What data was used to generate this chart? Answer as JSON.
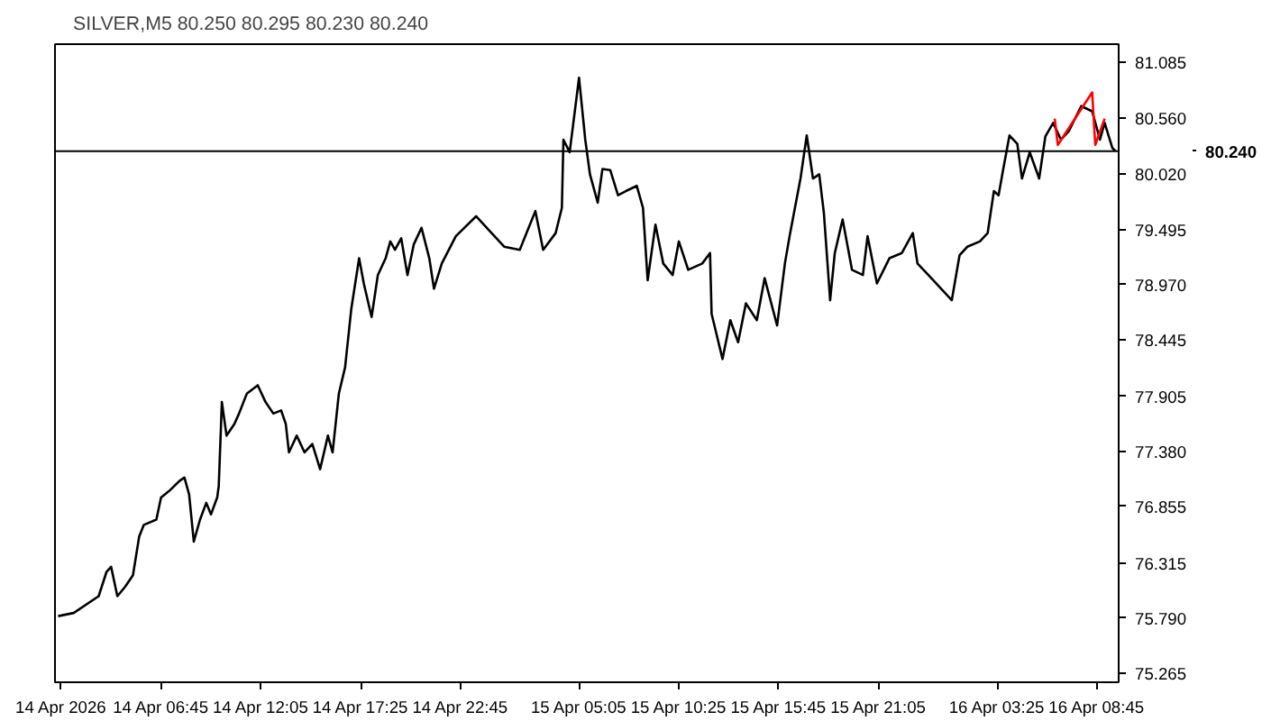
{
  "chart_data": {
    "type": "line",
    "title": "SILVER,M5  80.250 80.295 80.230 80.240",
    "xlim": [
      "2026-04-14T01:05",
      "2026-04-16T09:55"
    ],
    "ylim": [
      75.18,
      81.26
    ],
    "xticks": [
      {
        "value": "2026-04-14T01:25",
        "label": "14 Apr 2026"
      },
      {
        "value": "2026-04-14T06:45",
        "label": "14 Apr 06:45"
      },
      {
        "value": "2026-04-14T12:05",
        "label": "14 Apr 12:05"
      },
      {
        "value": "2026-04-14T17:25",
        "label": "14 Apr 17:25"
      },
      {
        "value": "2026-04-14T22:45",
        "label": "14 Apr 22:45"
      },
      {
        "value": "2026-04-15T05:05",
        "label": "15 Apr 05:05"
      },
      {
        "value": "2026-04-15T10:25",
        "label": "15 Apr 10:25"
      },
      {
        "value": "2026-04-15T15:45",
        "label": "15 Apr 15:45"
      },
      {
        "value": "2026-04-15T21:05",
        "label": "15 Apr 21:05"
      },
      {
        "value": "2026-04-16T03:25",
        "label": "16 Apr 03:25"
      },
      {
        "value": "2026-04-16T08:45",
        "label": "16 Apr 08:45"
      }
    ],
    "yticks": [
      {
        "value": 75.265,
        "label": "75.265"
      },
      {
        "value": 75.79,
        "label": "75.790"
      },
      {
        "value": 76.315,
        "label": "76.315"
      },
      {
        "value": 76.855,
        "label": "76.855"
      },
      {
        "value": 77.38,
        "label": "77.380"
      },
      {
        "value": 77.905,
        "label": "77.905"
      },
      {
        "value": 78.445,
        "label": "78.445"
      },
      {
        "value": 78.97,
        "label": "78.970"
      },
      {
        "value": 79.495,
        "label": "79.495"
      },
      {
        "value": 80.02,
        "label": "80.020"
      },
      {
        "value": 80.56,
        "label": "80.560"
      },
      {
        "value": 81.085,
        "label": "81.085"
      }
    ],
    "series": [
      {
        "color": "#000000",
        "x": [
          "2026-04-14T01:15",
          "2026-04-14T02:05",
          "2026-04-14T03:25",
          "2026-04-14T03:50",
          "2026-04-14T04:05",
          "2026-04-14T04:25",
          "2026-04-14T04:50",
          "2026-04-14T05:15",
          "2026-04-14T05:35",
          "2026-04-14T05:50",
          "2026-04-14T06:30",
          "2026-04-14T06:45",
          "2026-04-14T07:10",
          "2026-04-14T07:45",
          "2026-04-14T08:00",
          "2026-04-14T08:15",
          "2026-04-14T08:30",
          "2026-04-14T08:50",
          "2026-04-14T09:10",
          "2026-04-14T09:25",
          "2026-04-14T09:45",
          "2026-04-14T09:50",
          "2026-04-14T10:00",
          "2026-04-14T10:15",
          "2026-04-14T10:40",
          "2026-04-14T10:55",
          "2026-04-14T11:20",
          "2026-04-14T11:55",
          "2026-04-14T12:20",
          "2026-04-14T12:45",
          "2026-04-14T13:10",
          "2026-04-14T13:25",
          "2026-04-14T13:35",
          "2026-04-14T14:00",
          "2026-04-14T14:25",
          "2026-04-14T14:50",
          "2026-04-14T15:15",
          "2026-04-14T15:40",
          "2026-04-14T15:55",
          "2026-04-14T16:15",
          "2026-04-14T16:35",
          "2026-04-14T16:55",
          "2026-04-14T17:20",
          "2026-04-14T17:35",
          "2026-04-14T18:00",
          "2026-04-14T18:20",
          "2026-04-14T18:45",
          "2026-04-14T19:00",
          "2026-04-14T19:15",
          "2026-04-14T19:35",
          "2026-04-14T19:55",
          "2026-04-14T20:15",
          "2026-04-14T20:40",
          "2026-04-14T21:05",
          "2026-04-14T21:20",
          "2026-04-14T21:45",
          "2026-04-14T22:30",
          "2026-04-14T23:35",
          "2026-04-15T01:05",
          "2026-04-15T01:55",
          "2026-04-15T02:45",
          "2026-04-15T03:10",
          "2026-04-15T03:50",
          "2026-04-15T04:10",
          "2026-04-15T04:15",
          "2026-04-15T04:35",
          "2026-04-15T05:05",
          "2026-04-15T05:25",
          "2026-04-15T05:40",
          "2026-04-15T06:05",
          "2026-04-15T06:20",
          "2026-04-15T06:45",
          "2026-04-15T07:10",
          "2026-04-15T07:35",
          "2026-04-15T08:10",
          "2026-04-15T08:30",
          "2026-04-15T08:45",
          "2026-04-15T09:10",
          "2026-04-15T09:35",
          "2026-04-15T10:05",
          "2026-04-15T10:25",
          "2026-04-15T10:55",
          "2026-04-15T11:40",
          "2026-04-15T12:05",
          "2026-04-15T12:10",
          "2026-04-15T12:45",
          "2026-04-15T13:10",
          "2026-04-15T13:35",
          "2026-04-15T14:00",
          "2026-04-15T14:35",
          "2026-04-15T15:00",
          "2026-04-15T15:40",
          "2026-04-15T16:05",
          "2026-04-15T16:20",
          "2026-04-15T16:55",
          "2026-04-15T17:15",
          "2026-04-15T17:35",
          "2026-04-15T17:55",
          "2026-04-15T18:10",
          "2026-04-15T18:30",
          "2026-04-15T18:45",
          "2026-04-15T19:10",
          "2026-04-15T19:40",
          "2026-04-15T20:15",
          "2026-04-15T20:30",
          "2026-04-15T21:00",
          "2026-04-15T21:40",
          "2026-04-15T22:20",
          "2026-04-15T22:55",
          "2026-04-15T23:10",
          "2026-04-15T23:45",
          "2026-04-16T01:00",
          "2026-04-16T01:25",
          "2026-04-16T01:50",
          "2026-04-16T02:30",
          "2026-04-16T02:55",
          "2026-04-16T03:15",
          "2026-04-16T03:30",
          "2026-04-16T03:45",
          "2026-04-16T04:05",
          "2026-04-16T04:30",
          "2026-04-16T04:45",
          "2026-04-16T05:10",
          "2026-04-16T05:40",
          "2026-04-16T06:00",
          "2026-04-16T06:25",
          "2026-04-16T06:50",
          "2026-04-16T07:15",
          "2026-04-16T07:55",
          "2026-04-16T08:30",
          "2026-04-16T08:55",
          "2026-04-16T09:10",
          "2026-04-16T09:35",
          "2026-04-16T09:45"
        ],
        "values": [
          75.81,
          75.84,
          76.0,
          76.23,
          76.28,
          76.0,
          76.09,
          76.2,
          76.57,
          76.68,
          76.73,
          76.94,
          77.0,
          77.1,
          77.13,
          76.97,
          76.52,
          76.73,
          76.89,
          76.78,
          76.94,
          77.05,
          77.85,
          77.53,
          77.64,
          77.74,
          77.93,
          78.01,
          77.85,
          77.74,
          77.77,
          77.64,
          77.37,
          77.53,
          77.37,
          77.45,
          77.21,
          77.53,
          77.37,
          77.93,
          78.18,
          78.74,
          79.22,
          78.98,
          78.66,
          79.06,
          79.22,
          79.38,
          79.3,
          79.41,
          79.06,
          79.35,
          79.51,
          79.22,
          78.93,
          79.17,
          79.43,
          79.62,
          79.33,
          79.3,
          79.67,
          79.3,
          79.46,
          79.7,
          80.35,
          80.23,
          80.94,
          80.35,
          80.02,
          79.75,
          80.07,
          80.06,
          79.82,
          79.86,
          79.91,
          79.7,
          79.01,
          79.54,
          79.17,
          79.06,
          79.38,
          79.11,
          79.17,
          79.27,
          78.69,
          78.26,
          78.63,
          78.42,
          78.79,
          78.63,
          79.03,
          78.58,
          79.17,
          79.43,
          79.98,
          80.39,
          79.98,
          80.02,
          79.65,
          78.82,
          79.27,
          79.59,
          79.11,
          79.06,
          79.43,
          78.98,
          79.22,
          79.27,
          79.46,
          79.17,
          79.06,
          78.82,
          79.25,
          79.33,
          79.38,
          79.46,
          79.86,
          79.82,
          80.07,
          80.39,
          80.31,
          79.98,
          80.23,
          79.98,
          80.38,
          80.51,
          80.35,
          80.43,
          80.67,
          80.62,
          80.35,
          80.51,
          80.27,
          80.24
        ]
      },
      {
        "color": "#ff0000",
        "x": [
          "2026-04-16T06:30",
          "2026-04-16T06:40",
          "2026-04-16T08:30",
          "2026-04-16T08:40",
          "2026-04-16T09:10"
        ],
        "values": [
          80.55,
          80.3,
          80.8,
          80.3,
          80.55
        ]
      }
    ],
    "ref_lines": [
      {
        "axis": "y",
        "value": 80.24,
        "label": "80.240",
        "color": "#000000"
      }
    ]
  }
}
